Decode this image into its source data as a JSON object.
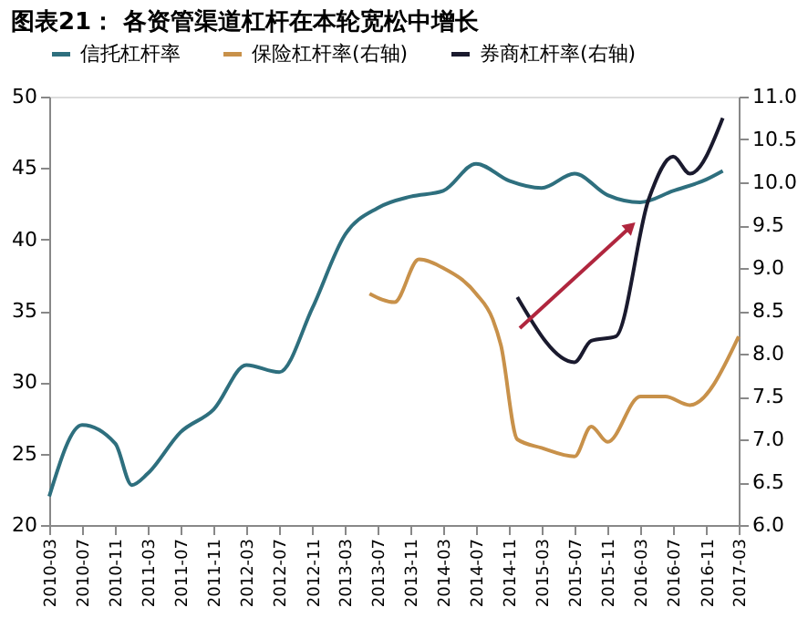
{
  "chart_data": {
    "type": "line",
    "title": "图表21：   各资管渠道杠杆在本轮宽松中增长",
    "series": [
      {
        "name": "信托杠杆率",
        "color": "#2e6f7e",
        "axis": "y",
        "x": [
          "2010-03",
          "2010-07",
          "2010-11",
          "2011-01",
          "2011-03",
          "2011-07",
          "2011-11",
          "2012-03",
          "2012-07",
          "2012-11",
          "2013-03",
          "2013-07",
          "2013-11",
          "2014-03",
          "2014-07",
          "2014-11",
          "2015-03",
          "2015-07",
          "2015-11",
          "2016-03",
          "2016-07",
          "2016-11",
          "2017-01"
        ],
        "values": [
          22,
          27,
          25.7,
          22.8,
          23.6,
          26.5,
          28.1,
          31.2,
          30.7,
          35.2,
          40.3,
          42.2,
          43,
          43.4,
          45.3,
          44.1,
          43.6,
          44.6,
          43.1,
          42.6,
          43.4,
          44.2,
          44.8
        ]
      },
      {
        "name": "保险杠杆率(右轴)",
        "color": "#c8914a",
        "axis": "y2",
        "x": [
          "2013-06",
          "2013-09",
          "2013-12",
          "2014-03",
          "2014-07",
          "2014-09",
          "2014-10",
          "2014-12",
          "2015-03",
          "2015-07",
          "2015-09",
          "2015-11",
          "2016-03",
          "2016-06",
          "2016-09",
          "2017-03"
        ],
        "values": [
          8.7,
          8.6,
          9.1,
          9.0,
          8.7,
          8.4,
          8.1,
          7.0,
          6.9,
          6.8,
          7.15,
          6.97,
          7.5,
          7.5,
          7.4,
          8.2
        ]
      },
      {
        "name": "券商杠杆率(右轴)",
        "color": "#1a1a2e",
        "axis": "y2",
        "x": [
          "2014-12",
          "2015-07",
          "2015-09",
          "2015-12",
          "2016-04",
          "2016-07",
          "2016-09",
          "2017-01"
        ],
        "values": [
          8.66,
          7.9,
          8.15,
          8.2,
          9.8,
          10.3,
          10.1,
          10.75
        ]
      }
    ],
    "xlim": [
      "2010-03",
      "2017-03"
    ],
    "xticks": [
      {
        "value": "2010-03",
        "label": "2010-03"
      },
      {
        "value": "2010-07",
        "label": "2010-07"
      },
      {
        "value": "2010-11",
        "label": "2010-11"
      },
      {
        "value": "2011-03",
        "label": "2011-03"
      },
      {
        "value": "2011-07",
        "label": "2011-07"
      },
      {
        "value": "2011-11",
        "label": "2011-11"
      },
      {
        "value": "2012-03",
        "label": "2012-03"
      },
      {
        "value": "2012-07",
        "label": "2012-07"
      },
      {
        "value": "2012-11",
        "label": "2012-11"
      },
      {
        "value": "2013-03",
        "label": "2013-03"
      },
      {
        "value": "2013-07",
        "label": "2013-07"
      },
      {
        "value": "2013-11",
        "label": "2013-11"
      },
      {
        "value": "2014-03",
        "label": "2014-03"
      },
      {
        "value": "2014-07",
        "label": "2014-07"
      },
      {
        "value": "2014-11",
        "label": "2014-11"
      },
      {
        "value": "2015-03",
        "label": "2015-03"
      },
      {
        "value": "2015-07",
        "label": "2015-07"
      },
      {
        "value": "2015-11",
        "label": "2015-11"
      },
      {
        "value": "2016-03",
        "label": "2016-03"
      },
      {
        "value": "2016-07",
        "label": "2016-07"
      },
      {
        "value": "2016-11",
        "label": "2016-11"
      },
      {
        "value": "2017-03",
        "label": "2017-03"
      }
    ],
    "ylim": [
      20,
      50
    ],
    "yticks": [
      20,
      25,
      30,
      35,
      40,
      45,
      50
    ],
    "y2lim": [
      6.0,
      11.0
    ],
    "y2ticks": [
      {
        "value": 6,
        "label": "6.0"
      },
      {
        "value": 6.5,
        "label": "6.5"
      },
      {
        "value": 7,
        "label": "7.0"
      },
      {
        "value": 7.5,
        "label": "7.5"
      },
      {
        "value": 8,
        "label": "8.0"
      },
      {
        "value": 8.5,
        "label": "8.5"
      },
      {
        "value": 9,
        "label": "9.0"
      },
      {
        "value": 9.5,
        "label": "9.5"
      },
      {
        "value": 10,
        "label": "10.0"
      },
      {
        "value": 10.5,
        "label": "10.5"
      },
      {
        "value": 11,
        "label": "11.0"
      }
    ],
    "legend": "top",
    "grid": false
  }
}
